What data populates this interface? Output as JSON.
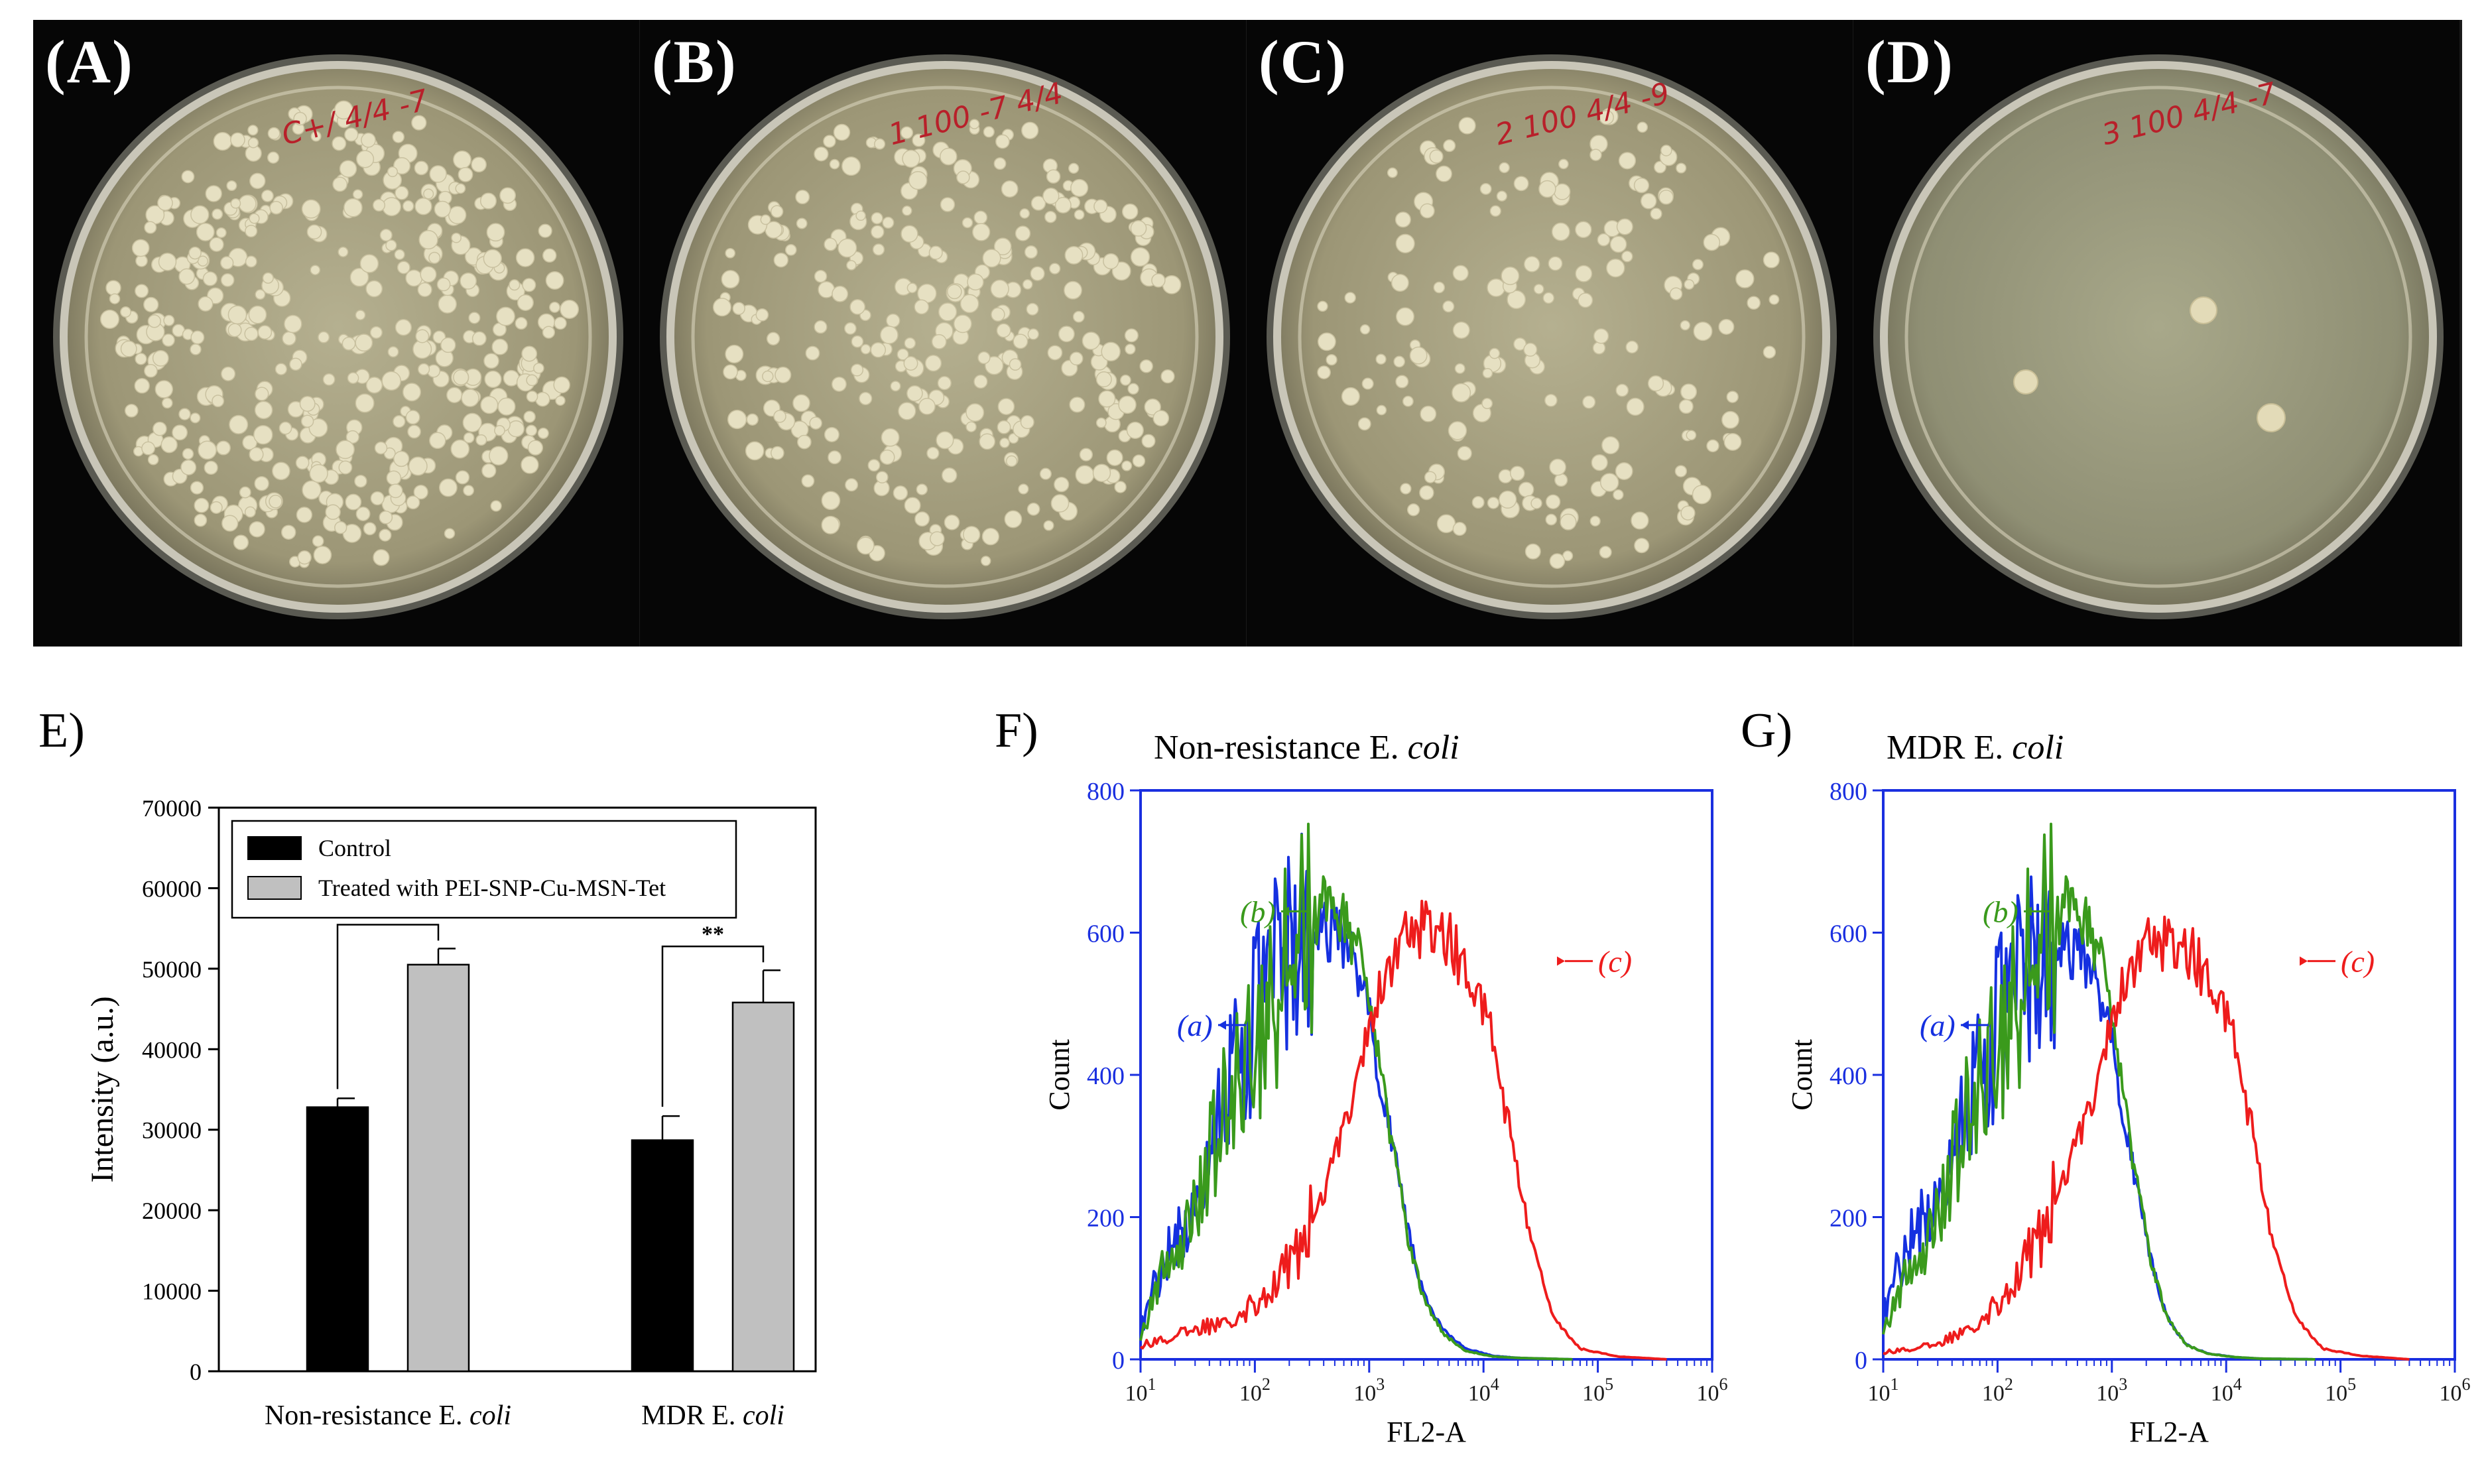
{
  "photo_panels": [
    {
      "letter": "(A)",
      "handwriting": "C+/ 4/4 -7",
      "colony_count": 420,
      "seed": 11
    },
    {
      "letter": "(B)",
      "handwriting": "1 100 -7 4/4",
      "colony_count": 300,
      "seed": 23
    },
    {
      "letter": "(C)",
      "handwriting": "2 100 4/4 -9",
      "colony_count": 175,
      "seed": 37
    },
    {
      "letter": "(D)",
      "handwriting": "3 100 4/4 -7",
      "colony_count": 3,
      "seed": 0
    }
  ],
  "colors": {
    "control": "#000000",
    "treated": "#c0c0c0",
    "flow_a": "#1530e0",
    "flow_b": "#3a9a1c",
    "flow_c": "#ee1c1c",
    "flow_axis": "#1a2fe0"
  },
  "panel_e": {
    "letter": "E)",
    "chart_data": {
      "type": "bar",
      "categories": [
        "Non-resistance E. coli",
        "MDR E. coli"
      ],
      "category_parts": [
        [
          "Non-resistance E. ",
          "coli"
        ],
        [
          "MDR E. ",
          "coli"
        ]
      ],
      "series": [
        {
          "name": "Control",
          "values": [
            32800,
            28700
          ],
          "errors": [
            1100,
            3000
          ]
        },
        {
          "name": "Treated with PEI-SNP-Cu-MSN-Tet",
          "values": [
            50500,
            45800
          ],
          "errors": [
            2000,
            4000
          ]
        }
      ],
      "ylabel": "Intensity (a.u.)",
      "ylim": [
        0,
        70000
      ],
      "yticks": [
        "0",
        "10000",
        "20000",
        "30000",
        "40000",
        "50000",
        "60000",
        "70000"
      ],
      "significance": [
        "***",
        "**"
      ],
      "legend_position": "top-left"
    }
  },
  "flow_panels": [
    {
      "letter": "F)",
      "title_parts": [
        "Non-resistance E. ",
        "coli"
      ],
      "chart_data": {
        "type": "line",
        "xlabel": "FL2-A",
        "ylabel": "Count",
        "x_scale": "log",
        "xlim": [
          10,
          1000000
        ],
        "ylim": [
          0,
          800
        ],
        "yticks": [
          "0",
          "200",
          "400",
          "600",
          "800"
        ],
        "xticks": [
          "10^1",
          "10^2",
          "10^3",
          "10^4",
          "10^5",
          "10^6"
        ],
        "curve_labels": [
          "(a)",
          "(b)",
          "(c)"
        ],
        "series": [
          {
            "label": "(a)",
            "color": "#1530e0",
            "x": [
              10,
              15,
              25,
              40,
              60,
              100,
              160,
              250,
              400,
              600,
              900,
              1200,
              1600,
              2200,
              3000,
              4500,
              7000,
              12000,
              20000,
              60000
            ],
            "y": [
              40,
              130,
              190,
              300,
              400,
              470,
              550,
              595,
              605,
              590,
              530,
              410,
              300,
              180,
              90,
              40,
              15,
              5,
              2,
              0
            ]
          },
          {
            "label": "(b)",
            "color": "#3a9a1c",
            "x": [
              10,
              15,
              25,
              40,
              60,
              100,
              160,
              250,
              400,
              600,
              900,
              1200,
              1600,
              2200,
              3000,
              4500,
              7000,
              12000,
              20000,
              60000
            ],
            "y": [
              30,
              120,
              180,
              280,
              370,
              450,
              530,
              600,
              640,
              625,
              545,
              420,
              300,
              170,
              85,
              35,
              12,
              4,
              2,
              0
            ]
          },
          {
            "label": "(c)",
            "color": "#ee1c1c",
            "x": [
              10,
              30,
              60,
              100,
              200,
              400,
              700,
              1000,
              1500,
              2200,
              3200,
              5000,
              8000,
              12000,
              17000,
              25000,
              40000,
              70000,
              150000,
              400000
            ],
            "y": [
              20,
              40,
              60,
              80,
              130,
              230,
              370,
              470,
              560,
              600,
              610,
              590,
              530,
              450,
              320,
              180,
              60,
              15,
              4,
              0
            ]
          }
        ]
      }
    },
    {
      "letter": "G)",
      "title_parts": [
        "MDR E. ",
        "coli"
      ],
      "chart_data": {
        "type": "line",
        "xlabel": "FL2-A",
        "ylabel": "Count",
        "x_scale": "log",
        "xlim": [
          10,
          1000000
        ],
        "ylim": [
          0,
          800
        ],
        "yticks": [
          "0",
          "200",
          "400",
          "600",
          "800"
        ],
        "xticks": [
          "10^1",
          "10^2",
          "10^3",
          "10^4",
          "10^5",
          "10^6"
        ],
        "curve_labels": [
          "(a)",
          "(b)",
          "(c)"
        ],
        "series": [
          {
            "label": "(a)",
            "color": "#1530e0",
            "x": [
              10,
              15,
              25,
              40,
              60,
              100,
              160,
              250,
              400,
              600,
              900,
              1200,
              1600,
              2200,
              3000,
              4500,
              7000,
              12000,
              20000,
              60000
            ],
            "y": [
              60,
              150,
              210,
              300,
              380,
              460,
              530,
              570,
              580,
              560,
              490,
              370,
              250,
              140,
              60,
              20,
              8,
              3,
              1,
              0
            ]
          },
          {
            "label": "(b)",
            "color": "#3a9a1c",
            "x": [
              10,
              15,
              25,
              40,
              60,
              100,
              160,
              250,
              400,
              600,
              900,
              1200,
              1600,
              2200,
              3000,
              4500,
              7000,
              12000,
              20000,
              60000
            ],
            "y": [
              40,
              110,
              170,
              270,
              360,
              450,
              530,
              600,
              640,
              620,
              530,
              390,
              260,
              140,
              60,
              20,
              8,
              3,
              1,
              0
            ]
          },
          {
            "label": "(c)",
            "color": "#ee1c1c",
            "x": [
              10,
              30,
              60,
              100,
              200,
              400,
              700,
              1000,
              1500,
              2200,
              3200,
              5000,
              8000,
              12000,
              17000,
              25000,
              40000,
              70000,
              150000,
              400000
            ],
            "y": [
              10,
              20,
              50,
              80,
              150,
              260,
              380,
              480,
              560,
              590,
              585,
              570,
              520,
              440,
              320,
              170,
              60,
              15,
              5,
              0
            ]
          }
        ]
      }
    }
  ]
}
